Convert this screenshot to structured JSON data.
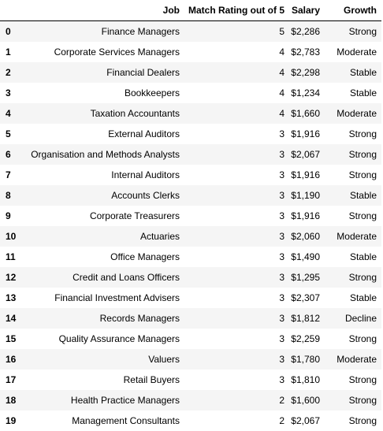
{
  "table": {
    "columns": {
      "index": "",
      "job": "Job",
      "rating": "Match Rating out of 5",
      "salary": "Salary",
      "growth": "Growth"
    },
    "rows": [
      {
        "index": "0",
        "job": "Finance Managers",
        "rating": "5",
        "salary": "$2,286",
        "growth": "Strong"
      },
      {
        "index": "1",
        "job": "Corporate Services Managers",
        "rating": "4",
        "salary": "$2,783",
        "growth": "Moderate"
      },
      {
        "index": "2",
        "job": "Financial Dealers",
        "rating": "4",
        "salary": "$2,298",
        "growth": "Stable"
      },
      {
        "index": "3",
        "job": "Bookkeepers",
        "rating": "4",
        "salary": "$1,234",
        "growth": "Stable"
      },
      {
        "index": "4",
        "job": "Taxation Accountants",
        "rating": "4",
        "salary": "$1,660",
        "growth": "Moderate"
      },
      {
        "index": "5",
        "job": "External Auditors",
        "rating": "3",
        "salary": "$1,916",
        "growth": "Strong"
      },
      {
        "index": "6",
        "job": "Organisation and Methods Analysts",
        "rating": "3",
        "salary": "$2,067",
        "growth": "Strong"
      },
      {
        "index": "7",
        "job": "Internal Auditors",
        "rating": "3",
        "salary": "$1,916",
        "growth": "Strong"
      },
      {
        "index": "8",
        "job": "Accounts Clerks",
        "rating": "3",
        "salary": "$1,190",
        "growth": "Stable"
      },
      {
        "index": "9",
        "job": "Corporate Treasurers",
        "rating": "3",
        "salary": "$1,916",
        "growth": "Strong"
      },
      {
        "index": "10",
        "job": "Actuaries",
        "rating": "3",
        "salary": "$2,060",
        "growth": "Moderate"
      },
      {
        "index": "11",
        "job": "Office Managers",
        "rating": "3",
        "salary": "$1,490",
        "growth": "Stable"
      },
      {
        "index": "12",
        "job": "Credit and Loans Officers",
        "rating": "3",
        "salary": "$1,295",
        "growth": "Strong"
      },
      {
        "index": "13",
        "job": "Financial Investment Advisers",
        "rating": "3",
        "salary": "$2,307",
        "growth": "Stable"
      },
      {
        "index": "14",
        "job": "Records Managers",
        "rating": "3",
        "salary": "$1,812",
        "growth": "Decline"
      },
      {
        "index": "15",
        "job": "Quality Assurance Managers",
        "rating": "3",
        "salary": "$2,259",
        "growth": "Strong"
      },
      {
        "index": "16",
        "job": "Valuers",
        "rating": "3",
        "salary": "$1,780",
        "growth": "Moderate"
      },
      {
        "index": "17",
        "job": "Retail Buyers",
        "rating": "3",
        "salary": "$1,810",
        "growth": "Strong"
      },
      {
        "index": "18",
        "job": "Health Practice Managers",
        "rating": "2",
        "salary": "$1,600",
        "growth": "Strong"
      },
      {
        "index": "19",
        "job": "Management Consultants",
        "rating": "2",
        "salary": "$2,067",
        "growth": "Strong"
      }
    ]
  }
}
